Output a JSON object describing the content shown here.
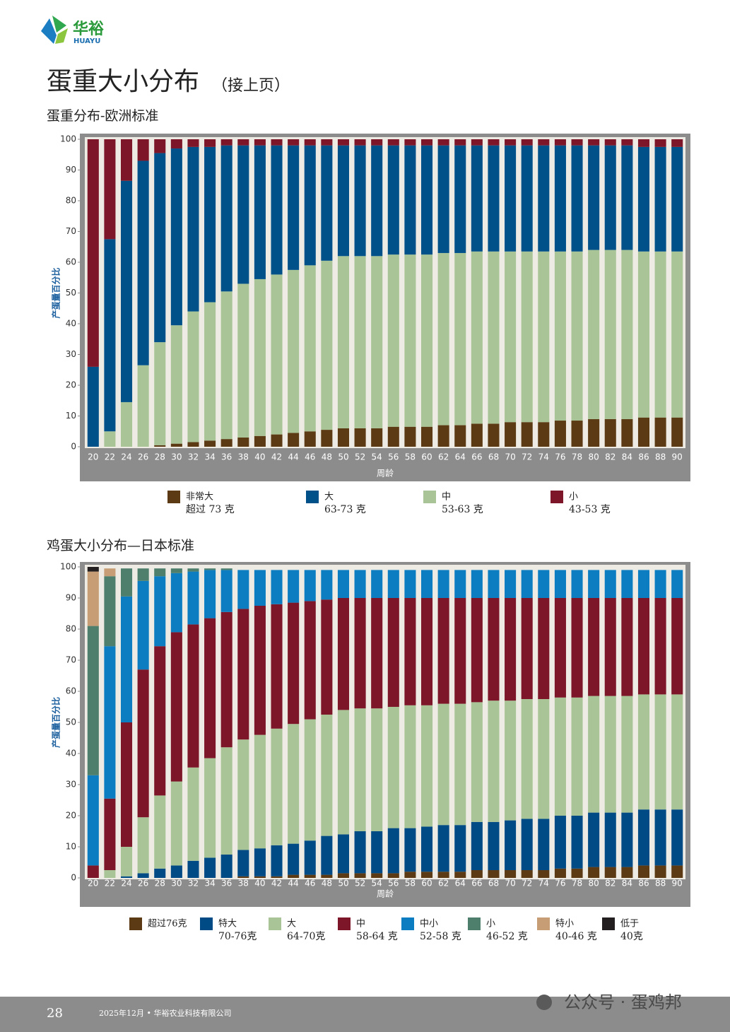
{
  "header": {
    "logo_cn": "华裕",
    "logo_en": "HUAYU"
  },
  "title": "蛋重大小分布",
  "title_note": "（接上页）",
  "chart_data": [
    {
      "type": "stacked_bar",
      "title": "蛋重分布-欧洲标准",
      "x_label": "周龄",
      "y_label": "产蛋量百分比",
      "categories": [
        "20",
        "22",
        "24",
        "26",
        "28",
        "30",
        "32",
        "34",
        "36",
        "38",
        "40",
        "42",
        "44",
        "46",
        "48",
        "50",
        "52",
        "54",
        "56",
        "58",
        "60",
        "62",
        "64",
        "66",
        "68",
        "70",
        "72",
        "74",
        "76",
        "78",
        "80",
        "82",
        "84",
        "86",
        "88",
        "90"
      ],
      "ylim": [
        0,
        100
      ],
      "yticks": [
        0,
        10,
        20,
        30,
        40,
        50,
        60,
        70,
        80,
        90,
        100
      ],
      "series": [
        {
          "name": "非常大",
          "range": "超过 73 克",
          "color": "#5c3a14",
          "values": [
            0,
            0,
            0,
            0,
            0.5,
            1,
            1.5,
            2,
            2.5,
            3,
            3.5,
            4,
            4.5,
            5,
            5.5,
            6,
            6,
            6,
            6.5,
            6.5,
            6.5,
            7,
            7,
            7.5,
            7.5,
            8,
            8,
            8,
            8.5,
            8.5,
            9,
            9,
            9,
            9.5,
            9.5,
            9.5
          ]
        },
        {
          "name": "中",
          "range": "53-63 克",
          "color": "#a9c597",
          "values": [
            0,
            5,
            14.5,
            26.5,
            33.5,
            38.5,
            42.5,
            45,
            48,
            50,
            51,
            52,
            53,
            54,
            55,
            56,
            56,
            56,
            56,
            56,
            56,
            56,
            56,
            56,
            56,
            55.5,
            55.5,
            55.5,
            55,
            55,
            55,
            55,
            55,
            54,
            54,
            54
          ]
        },
        {
          "name": "大",
          "range": "63-73 克",
          "color": "#00508a",
          "values": [
            26,
            62.5,
            72,
            66.5,
            61.5,
            57.5,
            53.5,
            50.5,
            47.5,
            45,
            43.5,
            42,
            40.5,
            39,
            37.5,
            36,
            36,
            36,
            35.5,
            35.5,
            35.5,
            35,
            35,
            34.5,
            34.5,
            34.5,
            34.5,
            34.5,
            34.5,
            34.5,
            34,
            34,
            34,
            34,
            34,
            34
          ]
        },
        {
          "name": "小",
          "range": "43-53 克",
          "color": "#7c1628",
          "values": [
            74,
            32.5,
            13.5,
            7,
            4.5,
            3,
            2.5,
            2.5,
            2,
            2,
            2,
            2,
            2,
            2,
            2,
            2,
            2,
            2,
            2,
            2,
            2,
            2,
            2,
            2,
            2,
            2,
            2,
            2,
            2,
            2,
            2,
            2,
            2,
            2.5,
            2.5,
            2.5
          ]
        }
      ]
    },
    {
      "type": "stacked_bar",
      "title": "鸡蛋大小分布—日本标准",
      "x_label": "周龄",
      "y_label": "产蛋量百分比",
      "categories": [
        "20",
        "22",
        "24",
        "26",
        "28",
        "30",
        "32",
        "34",
        "36",
        "38",
        "40",
        "42",
        "44",
        "46",
        "48",
        "50",
        "52",
        "54",
        "56",
        "58",
        "60",
        "62",
        "64",
        "66",
        "68",
        "70",
        "72",
        "74",
        "76",
        "78",
        "80",
        "82",
        "84",
        "86",
        "88",
        "90"
      ],
      "ylim": [
        0,
        100
      ],
      "yticks": [
        0,
        10,
        20,
        30,
        40,
        50,
        60,
        70,
        80,
        90,
        100
      ],
      "series": [
        {
          "name": "超过76克",
          "color": "#5c3a14",
          "values": [
            0,
            0,
            0,
            0,
            0,
            0,
            0,
            0,
            0,
            0.5,
            0.5,
            0.5,
            1,
            1,
            1,
            1.5,
            1.5,
            1.5,
            1.5,
            2,
            2,
            2,
            2,
            2.5,
            2.5,
            2.5,
            2.5,
            2.5,
            3,
            3,
            3.5,
            3.5,
            3.5,
            4,
            4,
            4
          ]
        },
        {
          "name": "特大",
          "range": "70-76克",
          "color": "#004a85",
          "values": [
            0,
            0,
            0.5,
            1.5,
            3,
            4,
            5.5,
            6.5,
            7.5,
            8.5,
            9,
            10,
            10,
            11,
            12.5,
            12.5,
            13.5,
            13.5,
            14.5,
            14,
            14.5,
            15,
            15,
            15.5,
            15.5,
            16,
            16.5,
            16.5,
            17,
            17,
            17.5,
            17.5,
            17.5,
            18,
            18,
            18
          ]
        },
        {
          "name": "大",
          "range": "64-70克",
          "color": "#a9c597",
          "values": [
            0,
            2.5,
            9.5,
            18,
            23.5,
            27,
            30,
            32,
            34.5,
            35.5,
            36.5,
            37.5,
            38.5,
            39,
            39,
            40,
            39.5,
            39.5,
            39,
            39.5,
            39,
            39,
            39,
            38.5,
            39,
            38.5,
            38.5,
            38.5,
            38,
            38,
            37.5,
            37.5,
            37.5,
            37,
            37,
            37
          ]
        },
        {
          "name": "中",
          "range": "58-64 克",
          "color": "#7c1628",
          "values": [
            4,
            23,
            40,
            47.5,
            48,
            48,
            46,
            45,
            43.5,
            42,
            41.5,
            40,
            39,
            38,
            37,
            36,
            35.5,
            35.5,
            35,
            34.5,
            34.5,
            34,
            34,
            33.5,
            33,
            33,
            32.5,
            32.5,
            32,
            32,
            31.5,
            31.5,
            31.5,
            31,
            31,
            31
          ]
        },
        {
          "name": "中小",
          "range": "52-58 克",
          "color": "#0b7dc0",
          "values": [
            29,
            49,
            40.5,
            28.5,
            22.5,
            19,
            17,
            15.5,
            13.5,
            12.5,
            11.5,
            11,
            10.5,
            10,
            9.5,
            9,
            9,
            9,
            9,
            9,
            9,
            9,
            9,
            9,
            9,
            9,
            9,
            9,
            9,
            9,
            9,
            9,
            9,
            9,
            9,
            9
          ]
        },
        {
          "name": "小",
          "range": "46-52 克",
          "color": "#4d7f6c",
          "values": [
            48,
            22.5,
            9,
            4,
            2.5,
            1.5,
            1,
            0.5,
            0.5,
            0,
            0,
            0,
            0,
            0,
            0,
            0,
            0,
            0,
            0,
            0,
            0,
            0,
            0,
            0,
            0,
            0,
            0,
            0,
            0,
            0,
            0,
            0,
            0,
            0,
            0,
            0
          ]
        },
        {
          "name": "特小",
          "range": "40-46 克",
          "color": "#c79d75",
          "values": [
            17.5,
            2.5,
            0,
            0,
            0,
            0,
            0,
            0,
            0,
            0,
            0,
            0,
            0,
            0,
            0,
            0,
            0,
            0,
            0,
            0,
            0,
            0,
            0,
            0,
            0,
            0,
            0,
            0,
            0,
            0,
            0,
            0,
            0,
            0,
            0,
            0
          ]
        },
        {
          "name": "低于",
          "range": "40克",
          "color": "#231f20",
          "values": [
            1.5,
            0,
            0,
            0,
            0,
            0,
            0,
            0,
            0,
            0,
            0,
            0,
            0,
            0,
            0,
            0,
            0,
            0,
            0,
            0,
            0,
            0,
            0,
            0,
            0,
            0,
            0,
            0,
            0,
            0,
            0,
            0,
            0,
            0,
            0,
            0
          ]
        }
      ]
    }
  ],
  "footer": {
    "page": "28",
    "text": "2025年12月 • 华裕农业科技有限公司"
  },
  "watermark": "公众号 · 蛋鸡邦"
}
